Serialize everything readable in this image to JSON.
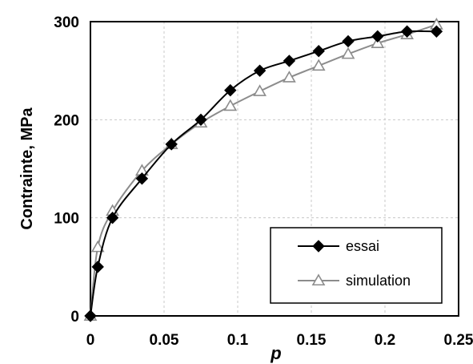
{
  "chart_data": {
    "type": "line",
    "xlabel": "p",
    "ylabel": "Contrainte, MPa",
    "xlim": [
      0,
      0.25
    ],
    "ylim": [
      0,
      300
    ],
    "xticks": [
      "0",
      "0.05",
      "0.1",
      "0.15",
      "0.2",
      "0.25"
    ],
    "yticks": [
      "0",
      "100",
      "200",
      "300"
    ],
    "grid": true,
    "legend_position": "bottom-right",
    "series": [
      {
        "name": "essai",
        "color": "#000000",
        "marker": "filled-diamond",
        "x": [
          0,
          0.005,
          0.015,
          0.035,
          0.055,
          0.075,
          0.095,
          0.115,
          0.135,
          0.155,
          0.175,
          0.195,
          0.215,
          0.235
        ],
        "y": [
          0,
          50,
          100,
          140,
          175,
          200,
          230,
          250,
          260,
          270,
          280,
          285,
          290,
          290
        ]
      },
      {
        "name": "simulation",
        "color": "#8c8c8c",
        "marker": "hollow-triangle",
        "x": [
          0,
          0.005,
          0.015,
          0.035,
          0.055,
          0.075,
          0.095,
          0.115,
          0.135,
          0.155,
          0.175,
          0.195,
          0.215,
          0.235
        ],
        "y": [
          0,
          70,
          107,
          148,
          175,
          197,
          214,
          229,
          243,
          255,
          267,
          278,
          287,
          297
        ]
      }
    ]
  }
}
